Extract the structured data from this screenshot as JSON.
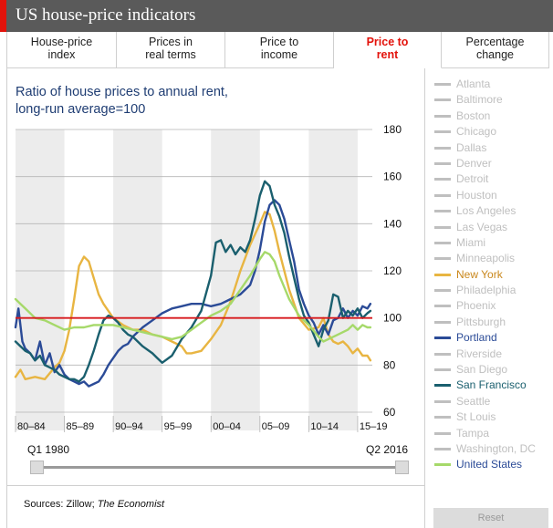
{
  "header": {
    "title": "US house-price indicators"
  },
  "tabs": [
    {
      "label": "House-price\nindex",
      "active": false
    },
    {
      "label": "Prices in\nreal terms",
      "active": false
    },
    {
      "label": "Price to\nincome",
      "active": false
    },
    {
      "label": "Price to\nrent",
      "active": true
    },
    {
      "label": "Percentage\nchange",
      "active": false
    }
  ],
  "chart": {
    "title_line1": "Ratio of house prices to annual rent,",
    "title_line2": "long-run average=100"
  },
  "slider": {
    "start_label": "Q1 1980",
    "end_label": "Q2 2016"
  },
  "sources": {
    "prefix": "Sources: Zillow; ",
    "publication": "The Economist"
  },
  "reset_label": "Reset",
  "colors": {
    "active": "#e3120b",
    "inactive_legend": "#bfbfbf",
    "band": "#ececec",
    "reference_line": "#d7191c"
  },
  "legend": [
    {
      "name": "Atlanta",
      "active": false
    },
    {
      "name": "Baltimore",
      "active": false
    },
    {
      "name": "Boston",
      "active": false
    },
    {
      "name": "Chicago",
      "active": false
    },
    {
      "name": "Dallas",
      "active": false
    },
    {
      "name": "Denver",
      "active": false
    },
    {
      "name": "Detroit",
      "active": false
    },
    {
      "name": "Houston",
      "active": false
    },
    {
      "name": "Los Angeles",
      "active": false
    },
    {
      "name": "Las Vegas",
      "active": false
    },
    {
      "name": "Miami",
      "active": false
    },
    {
      "name": "Minneapolis",
      "active": false
    },
    {
      "name": "New York",
      "active": true,
      "color": "#e8b542"
    },
    {
      "name": "Philadelphia",
      "active": false
    },
    {
      "name": "Phoenix",
      "active": false
    },
    {
      "name": "Pittsburgh",
      "active": false
    },
    {
      "name": "Portland",
      "active": true,
      "color": "#2b4b97"
    },
    {
      "name": "Riverside",
      "active": false
    },
    {
      "name": "San Diego",
      "active": false
    },
    {
      "name": "San Francisco",
      "active": true,
      "color": "#1a5f6e"
    },
    {
      "name": "Seattle",
      "active": false
    },
    {
      "name": "St Louis",
      "active": false
    },
    {
      "name": "Tampa",
      "active": false
    },
    {
      "name": "Washington, DC",
      "active": false
    },
    {
      "name": "United States",
      "active": true,
      "color": "#a6d96a"
    }
  ],
  "chart_data": {
    "type": "line",
    "title": "Ratio of house prices to annual rent, long-run average=100",
    "x_range": [
      1980,
      2016.5
    ],
    "ylim": [
      60,
      180
    ],
    "y_ticks": [
      180,
      160,
      140,
      120,
      100,
      80,
      60
    ],
    "x_tick_labels": [
      "80–84",
      "85–89",
      "90–94",
      "95–99",
      "00–04",
      "05–09",
      "10–14",
      "15–19"
    ],
    "bands": [
      [
        1980,
        1985
      ],
      [
        1990,
        1995
      ],
      [
        2000,
        2005
      ],
      [
        2010,
        2015
      ]
    ],
    "reference_value": 100,
    "series": [
      {
        "name": "New York",
        "color": "#e8b542",
        "x": [
          1980,
          1980.5,
          1981,
          1982,
          1983,
          1984,
          1984.5,
          1985,
          1985.5,
          1986,
          1986.5,
          1987,
          1987.5,
          1988,
          1988.5,
          1989,
          1990,
          1991,
          1992,
          1993,
          1994,
          1995,
          1996,
          1997,
          1997.5,
          1998,
          1999,
          2000,
          2001,
          2002,
          2003,
          2004,
          2005,
          2005.5,
          2006,
          2006.5,
          2007,
          2008,
          2009,
          2010,
          2011,
          2011.5,
          2012,
          2012.5,
          2013,
          2013.5,
          2014,
          2014.5,
          2015,
          2015.5,
          2016,
          2016.3
        ],
        "y": [
          75,
          78,
          74,
          75,
          74,
          79,
          81,
          86,
          95,
          108,
          122,
          126,
          124,
          117,
          110,
          106,
          100,
          97,
          95,
          95,
          93,
          92,
          90,
          88,
          85,
          85,
          86,
          91,
          97,
          107,
          120,
          131,
          140,
          145,
          144,
          137,
          128,
          112,
          100,
          95,
          96,
          100,
          93,
          90,
          89,
          90,
          88,
          85,
          87,
          84,
          84,
          82
        ]
      },
      {
        "name": "Portland",
        "color": "#2b4b97",
        "x": [
          1980,
          1980.3,
          1980.7,
          1981,
          1981.5,
          1982,
          1982.5,
          1983,
          1983.5,
          1984,
          1984.5,
          1985,
          1985.5,
          1986,
          1986.5,
          1987,
          1987.5,
          1988,
          1988.5,
          1989,
          1989.5,
          1990,
          1990.5,
          1991,
          1991.5,
          1992,
          1993,
          1994,
          1995,
          1996,
          1997,
          1998,
          1999,
          2000,
          2001,
          2002,
          2003,
          2004,
          2004.5,
          2005,
          2005.5,
          2006,
          2006.5,
          2007,
          2007.5,
          2008,
          2008.5,
          2009,
          2009.5,
          2010,
          2010.5,
          2011,
          2011.5,
          2012,
          2012.5,
          2013,
          2013.5,
          2014,
          2014.5,
          2015,
          2015.5,
          2016,
          2016.3
        ],
        "y": [
          96,
          104,
          90,
          87,
          85,
          82,
          90,
          80,
          85,
          77,
          80,
          76,
          74,
          73,
          72,
          73,
          71,
          72,
          73,
          76,
          80,
          83,
          86,
          88,
          89,
          92,
          96,
          99,
          102,
          104,
          105,
          106,
          106,
          105,
          106,
          108,
          110,
          114,
          120,
          129,
          141,
          148,
          150,
          148,
          142,
          133,
          124,
          112,
          106,
          101,
          98,
          93,
          97,
          93,
          99,
          100,
          104,
          100,
          103,
          101,
          105,
          104,
          106
        ]
      },
      {
        "name": "San Francisco",
        "color": "#1a5f6e",
        "x": [
          1980,
          1980.5,
          1981,
          1981.5,
          1982,
          1982.5,
          1983,
          1983.5,
          1984,
          1984.5,
          1985,
          1985.5,
          1986,
          1986.5,
          1987,
          1987.5,
          1988,
          1988.5,
          1989,
          1989.5,
          1990,
          1990.5,
          1991,
          1991.5,
          1992,
          1993,
          1994,
          1994.5,
          1995,
          1996,
          1997,
          1998,
          1999,
          2000,
          2000.5,
          2001,
          2001.5,
          2002,
          2002.5,
          2003,
          2003.5,
          2004,
          2004.5,
          2005,
          2005.5,
          2006,
          2006.5,
          2007,
          2007.5,
          2008,
          2008.5,
          2009,
          2009.5,
          2010,
          2010.5,
          2011,
          2011.5,
          2012,
          2012.5,
          2013,
          2013.5,
          2014,
          2014.5,
          2015,
          2015.5,
          2016,
          2016.3
        ],
        "y": [
          90,
          88,
          86,
          85,
          82,
          84,
          80,
          79,
          78,
          76,
          75,
          74,
          74,
          73,
          75,
          80,
          86,
          93,
          99,
          101,
          100,
          98,
          95,
          93,
          92,
          88,
          85,
          83,
          81,
          84,
          91,
          96,
          103,
          118,
          132,
          133,
          128,
          131,
          127,
          130,
          128,
          133,
          142,
          152,
          158,
          156,
          148,
          143,
          136,
          126,
          117,
          108,
          101,
          98,
          93,
          88,
          95,
          99,
          110,
          109,
          100,
          103,
          101,
          104,
          100,
          102,
          103
        ]
      },
      {
        "name": "United States",
        "color": "#a6d96a",
        "x": [
          1980,
          1980.5,
          1981,
          1982,
          1983,
          1984,
          1985,
          1986,
          1987,
          1988,
          1989,
          1990,
          1991,
          1992,
          1993,
          1994,
          1995,
          1996,
          1997,
          1998,
          1999,
          2000,
          2001,
          2002,
          2003,
          2004,
          2005,
          2005.5,
          2006,
          2006.5,
          2007,
          2008,
          2009,
          2010,
          2011,
          2011.5,
          2012,
          2013,
          2014,
          2014.5,
          2015,
          2015.5,
          2016,
          2016.3
        ],
        "y": [
          108,
          106,
          104,
          100,
          99,
          97,
          95,
          96,
          96,
          97,
          97,
          97,
          96,
          95,
          94,
          93,
          92,
          91,
          92,
          95,
          98,
          101,
          103,
          106,
          112,
          118,
          125,
          128,
          127,
          124,
          118,
          108,
          101,
          97,
          92,
          90,
          91,
          93,
          95,
          97,
          95,
          97,
          96,
          96
        ]
      }
    ]
  }
}
